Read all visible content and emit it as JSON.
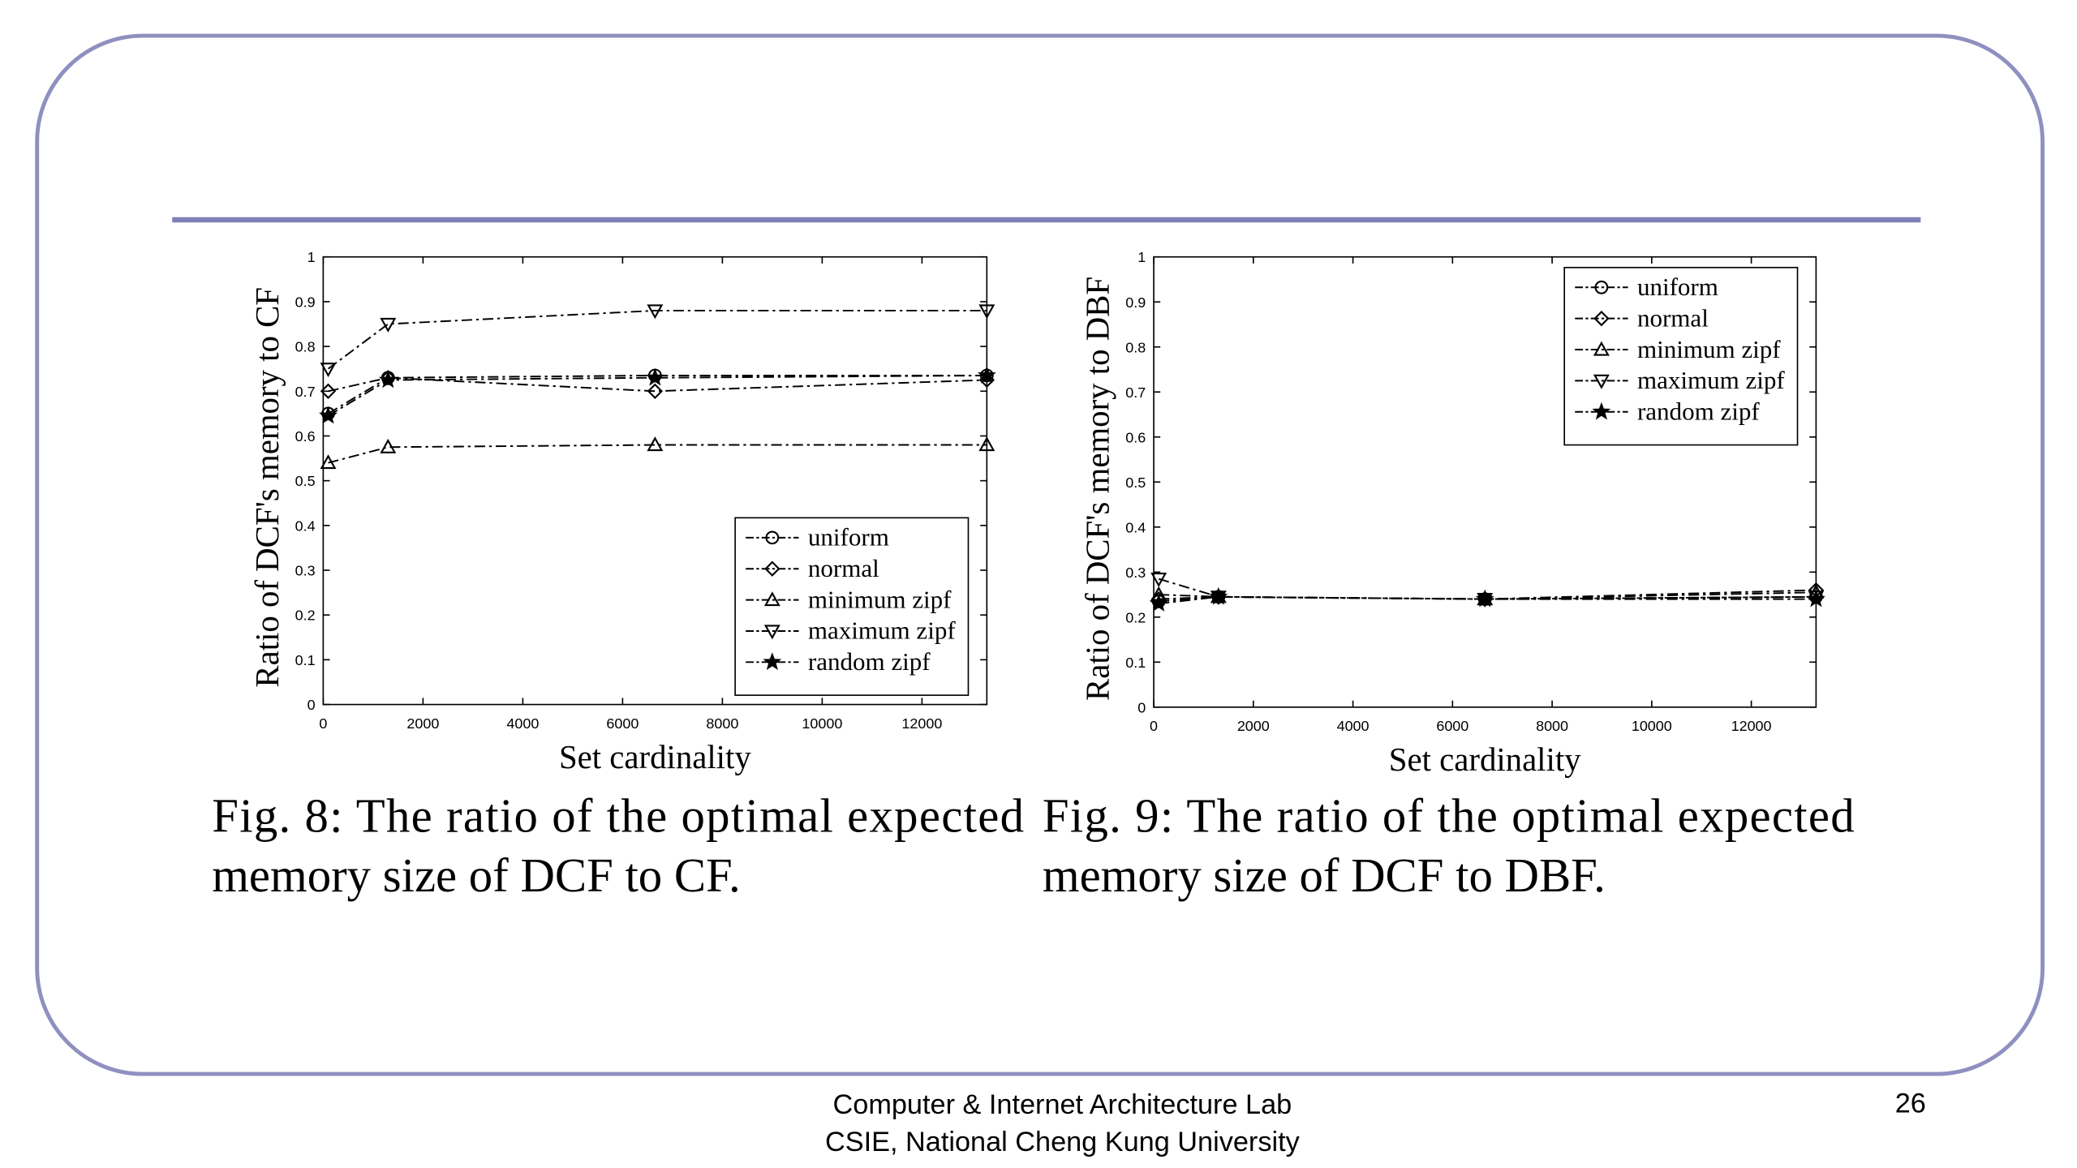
{
  "chart_data": [
    {
      "type": "line",
      "ylabel": "Ratio of DCF's memory to CF",
      "xlabel": "Set cardinality",
      "x": [
        100,
        1300,
        6650,
        13300
      ],
      "xlim": [
        0,
        13300
      ],
      "xticks": [
        0,
        2000,
        4000,
        6000,
        8000,
        10000,
        12000
      ],
      "ylim": [
        0,
        1
      ],
      "yticks": [
        0,
        0.1,
        0.2,
        0.3,
        0.4,
        0.5,
        0.6,
        0.7,
        0.8,
        0.9,
        1
      ],
      "grid": false,
      "legend": "lower right",
      "series": [
        {
          "name": "uniform",
          "color": "#000000",
          "marker": "circle",
          "values": [
            0.65,
            0.73,
            0.735,
            0.735
          ]
        },
        {
          "name": "normal",
          "color": "#000000",
          "marker": "diamond",
          "values": [
            0.7,
            0.73,
            0.7,
            0.725
          ]
        },
        {
          "name": "minimum zipf",
          "color": "#000000",
          "marker": "triangle-up",
          "values": [
            0.54,
            0.575,
            0.58,
            0.58
          ]
        },
        {
          "name": "maximum zipf",
          "color": "#000000",
          "marker": "triangle-down",
          "values": [
            0.75,
            0.85,
            0.88,
            0.88
          ]
        },
        {
          "name": "random zipf",
          "color": "#000000",
          "marker": "star",
          "values": [
            0.645,
            0.725,
            0.73,
            0.735
          ]
        }
      ]
    },
    {
      "type": "line",
      "ylabel": "Ratio of DCF's memory to DBF",
      "xlabel": "Set cardinality",
      "x": [
        100,
        1300,
        6650,
        13300
      ],
      "xlim": [
        0,
        13300
      ],
      "xticks": [
        0,
        2000,
        4000,
        6000,
        8000,
        10000,
        12000
      ],
      "ylim": [
        0,
        1
      ],
      "yticks": [
        0,
        0.1,
        0.2,
        0.3,
        0.4,
        0.5,
        0.6,
        0.7,
        0.8,
        0.9,
        1
      ],
      "grid": false,
      "legend": "upper right",
      "series": [
        {
          "name": "uniform",
          "color": "#000000",
          "marker": "circle",
          "values": [
            0.235,
            0.245,
            0.24,
            0.245
          ]
        },
        {
          "name": "normal",
          "color": "#000000",
          "marker": "diamond",
          "values": [
            0.24,
            0.245,
            0.24,
            0.26
          ]
        },
        {
          "name": "minimum zipf",
          "color": "#000000",
          "marker": "triangle-up",
          "values": [
            0.25,
            0.245,
            0.24,
            0.255
          ]
        },
        {
          "name": "maximum zipf",
          "color": "#000000",
          "marker": "triangle-down",
          "values": [
            0.285,
            0.245,
            0.24,
            0.245
          ]
        },
        {
          "name": "random zipf",
          "color": "#000000",
          "marker": "star",
          "values": [
            0.23,
            0.245,
            0.24,
            0.24
          ]
        }
      ]
    }
  ],
  "captions": [
    [
      "Fig. 8: The ratio of the optimal expected",
      "memory size of DCF to CF."
    ],
    [
      "Fig. 9: The ratio of the optimal expected",
      "memory size of DCF to DBF."
    ]
  ],
  "footer": {
    "lines": [
      "Computer & Internet Architecture Lab",
      "CSIE, National Cheng Kung University"
    ],
    "page": "26"
  }
}
